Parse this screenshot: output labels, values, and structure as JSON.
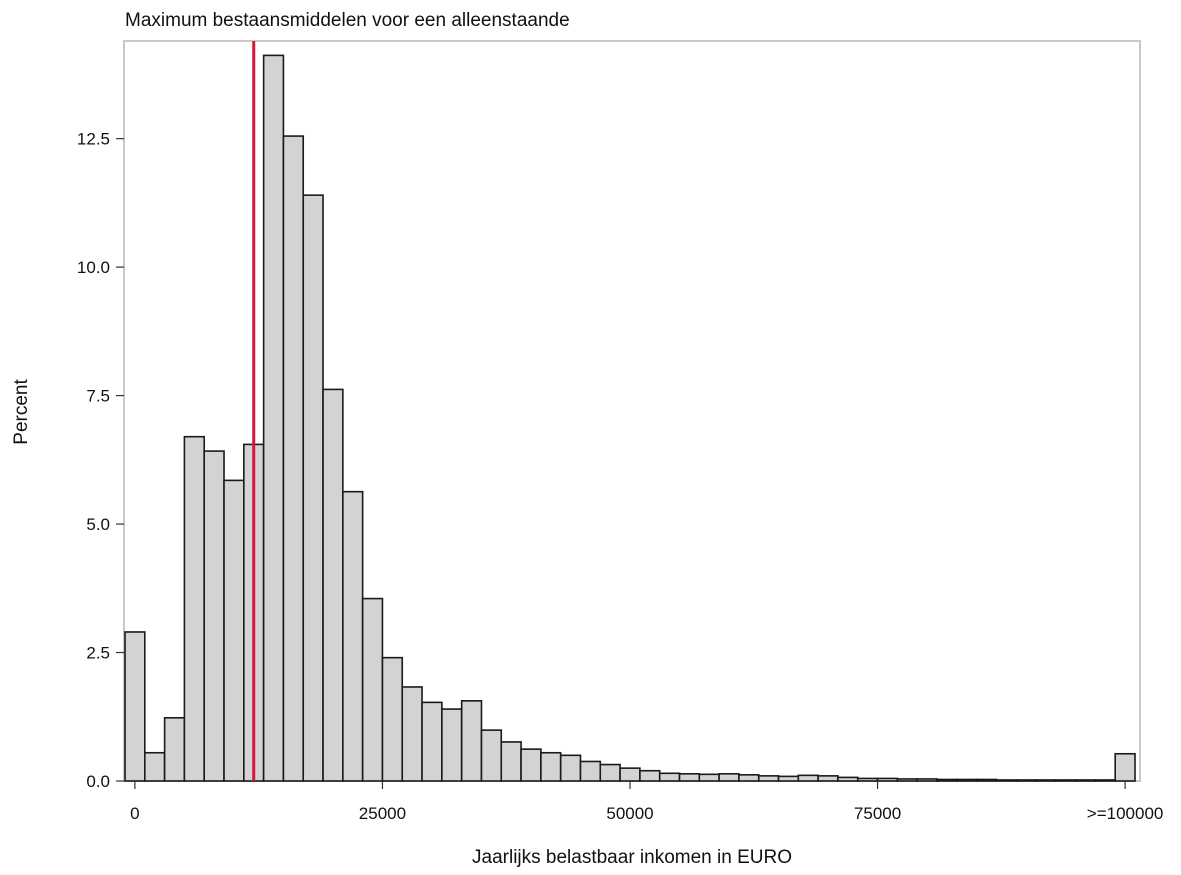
{
  "chart_data": {
    "type": "bar",
    "title": "Maximum bestaansmiddelen voor een alleenstaande",
    "xlabel": "Jaarlijks belastbaar inkomen in EURO",
    "ylabel": "Percent",
    "bin_width": 2000,
    "x_start": -1000,
    "xlim": [
      -1000,
      101000
    ],
    "ylim": [
      0,
      14.4
    ],
    "x_ticks": [
      {
        "value": 0,
        "label": "0"
      },
      {
        "value": 25000,
        "label": "25000"
      },
      {
        "value": 50000,
        "label": "50000"
      },
      {
        "value": 75000,
        "label": "75000"
      },
      {
        "value": 100000,
        "label": ">=100000"
      }
    ],
    "y_ticks": [
      {
        "value": 0,
        "label": "0.0"
      },
      {
        "value": 2.5,
        "label": "2.5"
      },
      {
        "value": 5,
        "label": "5.0"
      },
      {
        "value": 7.5,
        "label": "7.5"
      },
      {
        "value": 10,
        "label": "10.0"
      },
      {
        "value": 12.5,
        "label": "12.5"
      }
    ],
    "values": [
      2.9,
      0.55,
      1.23,
      6.7,
      6.42,
      5.85,
      6.55,
      14.12,
      12.55,
      11.4,
      7.62,
      5.63,
      3.55,
      2.4,
      1.83,
      1.53,
      1.4,
      1.56,
      0.99,
      0.76,
      0.62,
      0.55,
      0.5,
      0.38,
      0.32,
      0.25,
      0.2,
      0.15,
      0.14,
      0.13,
      0.14,
      0.12,
      0.1,
      0.09,
      0.11,
      0.1,
      0.07,
      0.05,
      0.05,
      0.04,
      0.04,
      0.03,
      0.03,
      0.03,
      0.02,
      0.02,
      0.02,
      0.02,
      0.02,
      0.02,
      0.53
    ],
    "reference_line": {
      "x": 12000,
      "color": "#d6163a"
    },
    "bar_fill": "#d3d3d3",
    "bar_stroke": "#1a1a1a",
    "frame_color": "#c8c8c8",
    "grid": false,
    "legend": "none"
  }
}
